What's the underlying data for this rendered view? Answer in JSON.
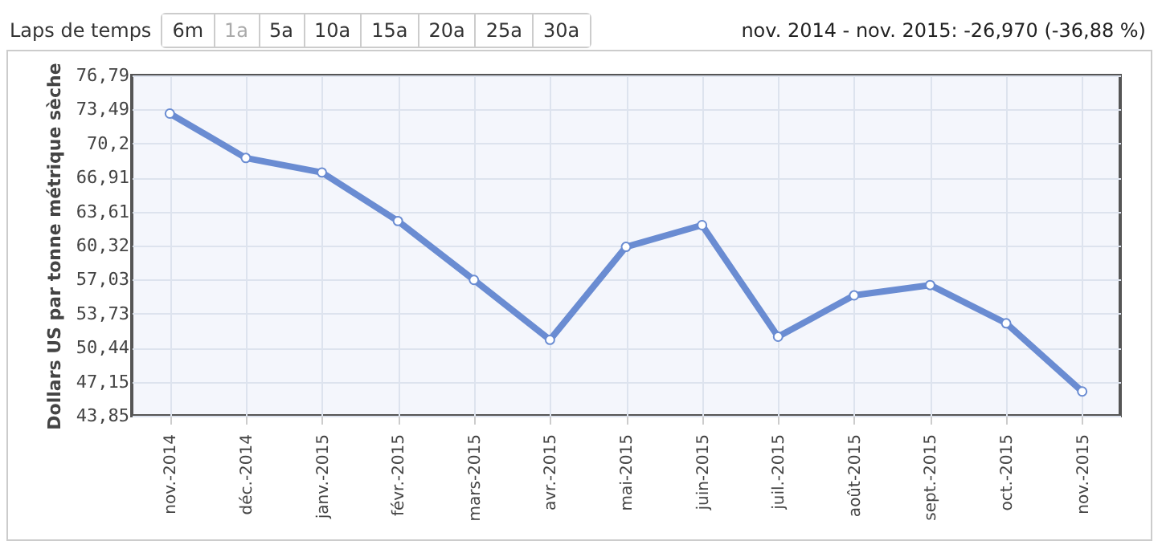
{
  "chart_data": {
    "type": "line",
    "ylabel": "Dollars US par tonne métrique sèche",
    "categories": [
      "nov.-2014",
      "déc.-2014",
      "janv.-2015",
      "févr.-2015",
      "mars-2015",
      "avr.-2015",
      "mai-2015",
      "juin-2015",
      "juil.-2015",
      "août-2015",
      "sept.-2015",
      "oct.-2015",
      "nov.-2015"
    ],
    "series": [
      {
        "color": "#6a8cd2",
        "values": [
          73.1,
          68.8,
          67.4,
          62.7,
          57.0,
          51.2,
          60.2,
          62.3,
          51.5,
          55.5,
          56.5,
          52.8,
          46.2
        ]
      }
    ],
    "ylim": [
      43.85,
      76.79
    ],
    "yticks": [
      {
        "value": 43.85,
        "label": "43,85"
      },
      {
        "value": 47.15,
        "label": "47,15"
      },
      {
        "value": 50.44,
        "label": "50,44"
      },
      {
        "value": 53.73,
        "label": "53,73"
      },
      {
        "value": 57.03,
        "label": "57,03"
      },
      {
        "value": 60.32,
        "label": "60,32"
      },
      {
        "value": 63.61,
        "label": "63,61"
      },
      {
        "value": 66.91,
        "label": "66,91"
      },
      {
        "value": 70.2,
        "label": "70,2"
      },
      {
        "value": 73.49,
        "label": "73,49"
      },
      {
        "value": 76.79,
        "label": "76,79"
      }
    ],
    "grid": true,
    "marker": "circle",
    "line_style": "solid",
    "annotations": [
      "Laps de temps",
      "6m",
      "1a",
      "5a",
      "10a",
      "15a",
      "20a",
      "25a",
      "30a",
      "nov. 2014 - nov. 2015: -26,970 (-36,88 %)"
    ]
  }
}
